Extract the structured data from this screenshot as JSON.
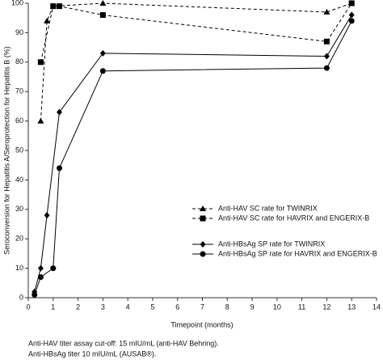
{
  "chart_data": {
    "type": "line",
    "y_label": "Seroconversion for Hepatitis A/Seroprotection for Hepatitis B (%)",
    "x_label": "Timepoint (months)",
    "xlim": [
      0,
      14
    ],
    "xticks": [
      0,
      1,
      2,
      3,
      4,
      5,
      6,
      7,
      8,
      9,
      10,
      11,
      12,
      13,
      14
    ],
    "ylim": [
      0,
      100
    ],
    "yticks": [
      0,
      10,
      20,
      30,
      40,
      50,
      60,
      70,
      80,
      90,
      100
    ],
    "series": [
      {
        "name": "Anti-HAV SC rate for TWINRIX",
        "color": "#000000",
        "marker": "triangle",
        "dashed": true,
        "x": [
          0.5,
          0.75,
          1,
          3,
          12,
          13
        ],
        "values": [
          60,
          94,
          99,
          100,
          97,
          100
        ]
      },
      {
        "name": "Anti-HAV SC rate for HAVRIX and ENGERIX-B",
        "color": "#000000",
        "marker": "square",
        "dashed": true,
        "x": [
          0.5,
          1,
          1.25,
          3,
          12,
          13
        ],
        "values": [
          80,
          99,
          99,
          96,
          87,
          100
        ]
      },
      {
        "name": "Anti-HBsAg SP rate for TWINRIX",
        "color": "#000000",
        "marker": "diamond",
        "dashed": false,
        "x": [
          0.25,
          0.5,
          0.75,
          1.25,
          3,
          12,
          13
        ],
        "values": [
          2,
          10,
          28,
          63,
          83,
          82,
          96
        ]
      },
      {
        "name": "Anti-HBsAg SP rate for HAVRIX and ENGERIX-B",
        "color": "#000000",
        "marker": "circle",
        "dashed": false,
        "x": [
          0.25,
          0.5,
          1,
          1.25,
          3,
          12,
          13
        ],
        "values": [
          1,
          7,
          10,
          44,
          77,
          78,
          94
        ]
      }
    ],
    "footnotes": [
      "Anti-HAV titer assay cut-off: 15 mIU/mL (anti-HAV Behring).",
      "Anti-HBsAg titer 10 mIU/mL (AUSAB®)."
    ]
  }
}
